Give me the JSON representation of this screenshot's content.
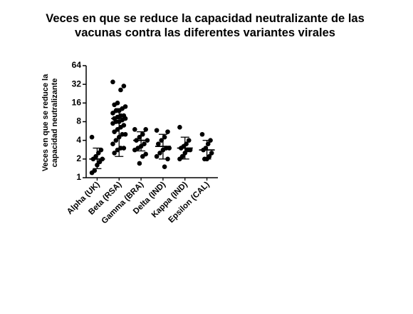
{
  "chart_data": {
    "type": "dot",
    "title": [
      "Veces en que se reduce la capacidad neutralizante de las",
      "vacunas contra las diferentes variantes virales"
    ],
    "ylabel": [
      "Veces en que se reduce la",
      "capacidad neutralizante"
    ],
    "categories": [
      "Alpha (UK)",
      "Beta (RSA)",
      "Gamma (BRA)",
      "Delta (IND)",
      "Kappa (IND)",
      "Epsilon (CAL)"
    ],
    "points": [
      [
        4.5,
        2.8,
        2.5,
        2.2,
        2.0,
        2.0,
        1.8,
        1.6,
        1.3,
        1.2
      ],
      [
        35,
        30,
        26,
        16,
        15,
        14,
        13,
        12,
        12,
        11,
        10,
        10,
        9.5,
        9,
        9,
        8.5,
        8,
        8,
        7.5,
        7,
        6.5,
        6,
        5.5,
        5,
        5,
        4.5,
        4,
        3.5,
        3,
        3,
        2.8,
        2.5
      ],
      [
        6.0,
        6.0,
        5.0,
        4.5,
        4.0,
        4.0,
        3.5,
        3.2,
        3.0,
        2.8,
        2.4,
        2.2,
        1.7
      ],
      [
        5.8,
        5.5,
        4.5,
        4.0,
        3.5,
        3.0,
        3.0,
        2.8,
        2.5,
        2.2,
        2.0,
        1.5
      ],
      [
        6.5,
        4.0,
        3.5,
        3.2,
        3.0,
        2.8,
        2.8,
        2.5,
        2.2,
        2.0
      ],
      [
        5.0,
        4.0,
        3.5,
        3.0,
        2.8,
        2.5,
        2.2,
        2.0,
        2.0
      ]
    ],
    "means": [
      2.0,
      9.0,
      4.0,
      3.2,
      3.0,
      2.8
    ],
    "error_high": [
      3.0,
      13,
      5.5,
      5.0,
      4.5,
      4.0
    ],
    "error_low": [
      1.4,
      2.2,
      2.7,
      2.0,
      2.0,
      2.0
    ],
    "color": "#000000",
    "log_base": 2,
    "ylim": [
      1,
      64
    ],
    "yticks": [
      1,
      2,
      4,
      8,
      16,
      32,
      64
    ]
  }
}
